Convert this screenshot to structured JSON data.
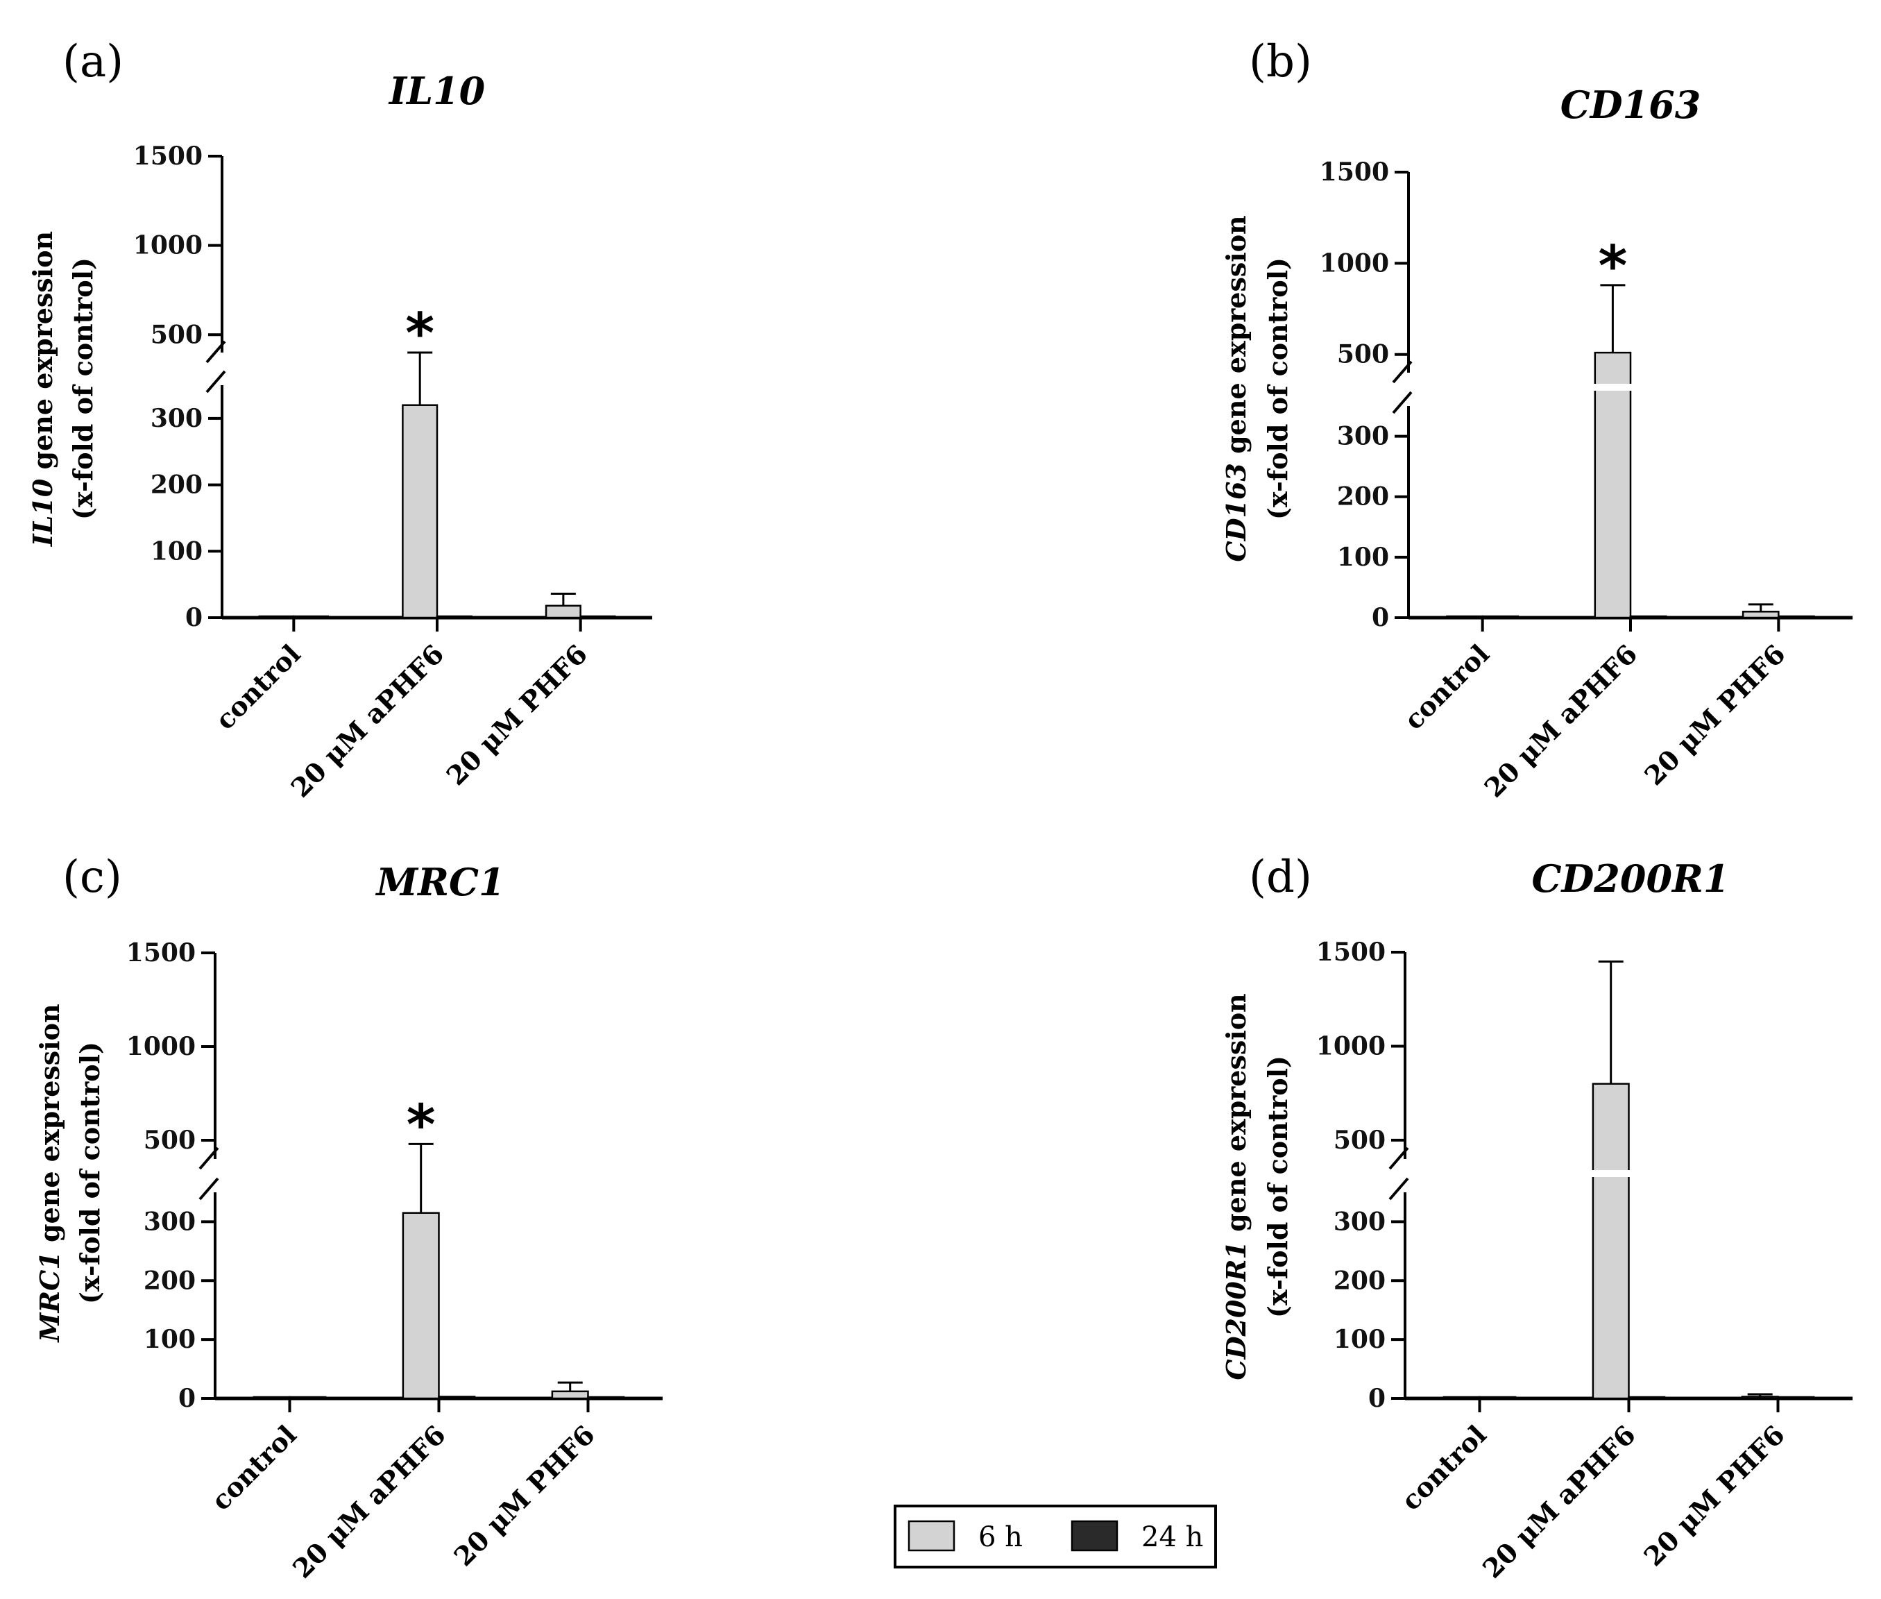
{
  "chart_data": [
    {
      "panel_label": "(a)",
      "title": "IL10",
      "type": "bar",
      "ylabel_italic": "IL10",
      "ylabel_rest": " gene expression",
      "ylabel_line2": "(x-fold of control)",
      "categories": [
        "control",
        "20 μM aPHF6",
        "20 μM PHF6"
      ],
      "ylim": [
        0,
        1500
      ],
      "axis_break": [
        350,
        400
      ],
      "lower_ticks": [
        0,
        100,
        200,
        300
      ],
      "upper_ticks": [
        500,
        1000,
        1500
      ],
      "series": [
        {
          "name": "6 h",
          "values": [
            1,
            320,
            18
          ],
          "errors": [
            0,
            80,
            18
          ]
        },
        {
          "name": "24 h",
          "values": [
            1,
            1.5,
            0.5
          ],
          "errors": [
            0,
            0,
            0
          ]
        }
      ],
      "significance": [
        "",
        "*",
        ""
      ]
    },
    {
      "panel_label": "(b)",
      "title": "CD163",
      "type": "bar",
      "ylabel_italic": "CD163",
      "ylabel_rest": " gene expression",
      "ylabel_line2": "(x-fold of control)",
      "categories": [
        "control",
        "20 μM aPHF6",
        "20 μM PHF6"
      ],
      "ylim": [
        0,
        1500
      ],
      "axis_break": [
        350,
        400
      ],
      "lower_ticks": [
        0,
        100,
        200,
        300
      ],
      "upper_ticks": [
        500,
        1000,
        1500
      ],
      "series": [
        {
          "name": "6 h",
          "values": [
            1,
            510,
            10
          ],
          "errors": [
            0,
            370,
            12
          ]
        },
        {
          "name": "24 h",
          "values": [
            1,
            1,
            0.5
          ],
          "errors": [
            0,
            0,
            0
          ]
        }
      ],
      "significance": [
        "",
        "*",
        ""
      ]
    },
    {
      "panel_label": "(c)",
      "title": "MRC1",
      "type": "bar",
      "ylabel_italic": "MRC1",
      "ylabel_rest": " gene expression",
      "ylabel_line2": "(x-fold of control)",
      "categories": [
        "control",
        "20 μM aPHF6",
        "20 μM PHF6"
      ],
      "ylim": [
        0,
        1500
      ],
      "axis_break": [
        350,
        400
      ],
      "lower_ticks": [
        0,
        100,
        200,
        300
      ],
      "upper_ticks": [
        500,
        1000,
        1500
      ],
      "series": [
        {
          "name": "6 h",
          "values": [
            1,
            315,
            12
          ],
          "errors": [
            0,
            165,
            15
          ]
        },
        {
          "name": "24 h",
          "values": [
            1,
            3,
            0.5
          ],
          "errors": [
            0,
            0,
            0
          ]
        }
      ],
      "significance": [
        "",
        "*",
        ""
      ]
    },
    {
      "panel_label": "(d)",
      "title": "CD200R1",
      "type": "bar",
      "ylabel_italic": "CD200R1",
      "ylabel_rest": " gene expression",
      "ylabel_line2": "(x-fold of control)",
      "categories": [
        "control",
        "20 μM aPHF6",
        "20 μM PHF6"
      ],
      "ylim": [
        0,
        1500
      ],
      "axis_break": [
        350,
        400
      ],
      "lower_ticks": [
        0,
        100,
        200,
        300
      ],
      "upper_ticks": [
        500,
        1000,
        1500
      ],
      "series": [
        {
          "name": "6 h",
          "values": [
            1,
            800,
            3
          ],
          "errors": [
            0,
            650,
            4
          ]
        },
        {
          "name": "24 h",
          "values": [
            1,
            2,
            0.5
          ],
          "errors": [
            0,
            0,
            0
          ]
        }
      ],
      "significance": [
        "",
        "",
        ""
      ]
    }
  ],
  "legend": {
    "items": [
      {
        "label": "6 h",
        "color": "#d3d3d3"
      },
      {
        "label": "24 h",
        "color": "#2a2a2a"
      }
    ]
  },
  "colors": {
    "series_6h": "#d3d3d3",
    "series_24h": "#2a2a2a",
    "axis": "#000000"
  }
}
